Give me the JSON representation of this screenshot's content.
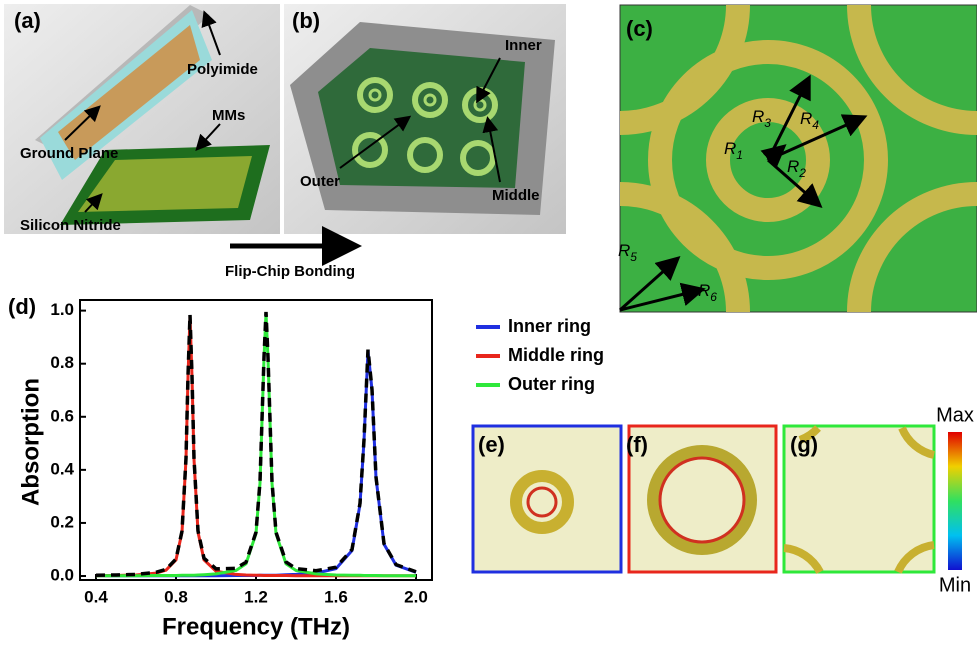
{
  "panels": {
    "a": {
      "label": "(a)",
      "callouts": [
        "Polyimide",
        "MMs",
        "Ground Plane",
        "Silicon Nitride"
      ]
    },
    "b": {
      "label": "(b)",
      "callouts": [
        "Inner",
        "Outer",
        "Middle"
      ]
    },
    "process": "Flip-Chip Bonding",
    "c": {
      "label": "(c)",
      "radii": [
        {
          "symbol": "R",
          "index": "1"
        },
        {
          "symbol": "R",
          "index": "2"
        },
        {
          "symbol": "R",
          "index": "3"
        },
        {
          "symbol": "R",
          "index": "4"
        },
        {
          "symbol": "R",
          "index": "5"
        },
        {
          "symbol": "R",
          "index": "6"
        }
      ]
    },
    "d": {
      "label": "(d)"
    },
    "e": {
      "label": "(e)"
    },
    "f": {
      "label": "(f)"
    },
    "g": {
      "label": "(g)"
    },
    "colorbar": {
      "max": "Max",
      "min": "Min"
    }
  },
  "chart_data": {
    "type": "line",
    "x_label": "Frequency (THz)",
    "y_label": "Absorption",
    "x": [
      0.4,
      0.5,
      0.6,
      0.7,
      0.75,
      0.8,
      0.83,
      0.85,
      0.86,
      0.87,
      0.88,
      0.89,
      0.91,
      0.94,
      1.0,
      1.1,
      1.15,
      1.2,
      1.22,
      1.24,
      1.25,
      1.26,
      1.28,
      1.3,
      1.35,
      1.4,
      1.5,
      1.6,
      1.68,
      1.72,
      1.74,
      1.76,
      1.78,
      1.8,
      1.84,
      1.9,
      2.0
    ],
    "series": [
      {
        "name": "Inner ring",
        "color": "#1f2fe0",
        "values": [
          0.001,
          0.001,
          0.001,
          0.001,
          0.001,
          0.001,
          0.001,
          0.001,
          0.001,
          0.001,
          0.001,
          0.001,
          0.001,
          0.001,
          0.001,
          0.002,
          0.002,
          0.002,
          0.003,
          0.003,
          0.003,
          0.003,
          0.003,
          0.003,
          0.005,
          0.006,
          0.011,
          0.028,
          0.096,
          0.27,
          0.51,
          0.85,
          0.7,
          0.37,
          0.12,
          0.041,
          0.014
        ]
      },
      {
        "name": "Middle ring",
        "color": "#e8261c",
        "values": [
          0.001,
          0.002,
          0.004,
          0.011,
          0.022,
          0.061,
          0.165,
          0.44,
          0.75,
          0.98,
          0.75,
          0.44,
          0.165,
          0.061,
          0.018,
          0.006,
          0.004,
          0.003,
          0.003,
          0.002,
          0.002,
          0.002,
          0.002,
          0.002,
          0.002,
          0.001,
          0.001,
          0.001,
          0.001,
          0.001,
          0.001,
          0.001,
          0.001,
          0.001,
          0.001,
          0.001,
          0.001
        ]
      },
      {
        "name": "Outer ring",
        "color": "#2ee83a",
        "values": [
          0.001,
          0.001,
          0.001,
          0.002,
          0.002,
          0.002,
          0.003,
          0.003,
          0.003,
          0.003,
          0.003,
          0.003,
          0.004,
          0.005,
          0.008,
          0.021,
          0.046,
          0.16,
          0.35,
          0.82,
          0.99,
          0.82,
          0.35,
          0.16,
          0.046,
          0.021,
          0.008,
          0.004,
          0.003,
          0.003,
          0.002,
          0.002,
          0.002,
          0.002,
          0.001,
          0.001,
          0.001
        ]
      },
      {
        "color": "#000000",
        "style": "dashed",
        "values": [
          0.003,
          0.004,
          0.006,
          0.014,
          0.025,
          0.064,
          0.169,
          0.444,
          0.754,
          0.984,
          0.754,
          0.444,
          0.17,
          0.067,
          0.027,
          0.029,
          0.052,
          0.165,
          0.356,
          0.825,
          0.995,
          0.825,
          0.355,
          0.165,
          0.053,
          0.028,
          0.02,
          0.033,
          0.1,
          0.274,
          0.513,
          0.853,
          0.703,
          0.373,
          0.122,
          0.043,
          0.016
        ]
      }
    ],
    "xlim": [
      0.32,
      2.08
    ],
    "ylim": [
      -0.015,
      1.04
    ],
    "xticks": [
      0.4,
      0.8,
      1.2,
      1.6,
      {
        "value": 2,
        "label": "2.0"
      }
    ],
    "yticks": [
      {
        "value": 0,
        "label": "0.0"
      },
      0.2,
      0.4,
      0.6,
      0.8,
      {
        "value": 1,
        "label": "1.0"
      }
    ]
  }
}
